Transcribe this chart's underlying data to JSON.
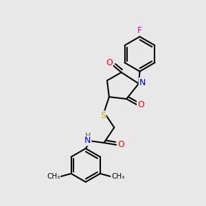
{
  "background_color": "#e8e8e8",
  "bond_color": "#000000",
  "atom_colors": {
    "F": "#dd00dd",
    "O": "#ff0000",
    "N": "#0000ee",
    "S": "#bbaa00",
    "C": "#000000",
    "H": "#555555"
  },
  "bond_width": 1.5,
  "figsize": [
    3.0,
    3.0
  ],
  "dpi": 100
}
